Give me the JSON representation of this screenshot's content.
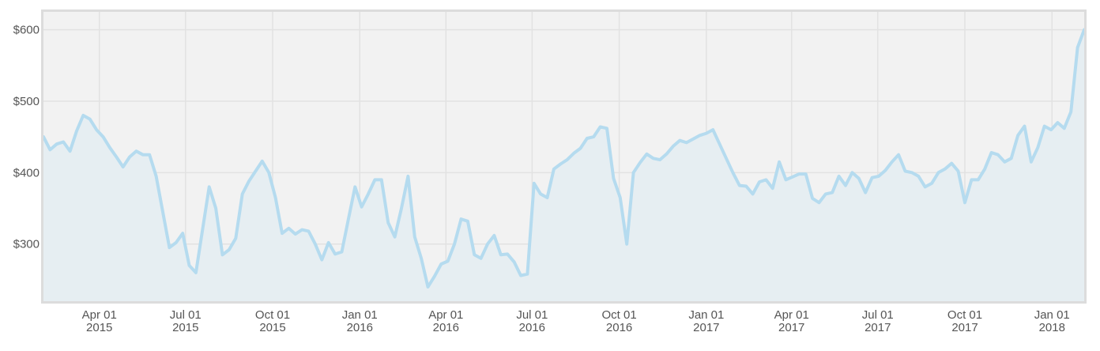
{
  "chart_data": {
    "type": "area",
    "color": "#b5dbef",
    "fill_color": "#e6eef2",
    "background": "#f2f2f2",
    "grid": true,
    "xlim": [
      "2015-02-01",
      "2018-02-04"
    ],
    "ylim": [
      220,
      625
    ],
    "yticks": [
      {
        "value": 300,
        "label": "$300"
      },
      {
        "value": 400,
        "label": "$400"
      },
      {
        "value": 500,
        "label": "$500"
      },
      {
        "value": 600,
        "label": "$600"
      }
    ],
    "xticks": [
      {
        "value": "2015-04-01",
        "label": "Apr 01 2015"
      },
      {
        "value": "2015-07-01",
        "label": "Jul 01 2015"
      },
      {
        "value": "2015-10-01",
        "label": "Oct 01 2015"
      },
      {
        "value": "2016-01-01",
        "label": "Jan 01 2016"
      },
      {
        "value": "2016-04-01",
        "label": "Apr 01 2016"
      },
      {
        "value": "2016-07-01",
        "label": "Jul 01 2016"
      },
      {
        "value": "2016-10-01",
        "label": "Oct 01 2016"
      },
      {
        "value": "2017-01-01",
        "label": "Jan 01 2017"
      },
      {
        "value": "2017-04-01",
        "label": "Apr 01 2017"
      },
      {
        "value": "2017-07-01",
        "label": "Jul 01 2017"
      },
      {
        "value": "2017-10-01",
        "label": "Oct 01 2017"
      },
      {
        "value": "2018-01-01",
        "label": "Jan 01 2018"
      }
    ],
    "x": [
      "2015-02-01",
      "2015-02-08",
      "2015-02-15",
      "2015-02-22",
      "2015-03-01",
      "2015-03-08",
      "2015-03-15",
      "2015-03-22",
      "2015-03-29",
      "2015-04-05",
      "2015-04-12",
      "2015-04-19",
      "2015-04-26",
      "2015-05-03",
      "2015-05-10",
      "2015-05-17",
      "2015-05-24",
      "2015-05-31",
      "2015-06-07",
      "2015-06-14",
      "2015-06-21",
      "2015-06-28",
      "2015-07-05",
      "2015-07-12",
      "2015-07-19",
      "2015-07-26",
      "2015-08-02",
      "2015-08-09",
      "2015-08-16",
      "2015-08-23",
      "2015-08-30",
      "2015-09-06",
      "2015-09-13",
      "2015-09-20",
      "2015-09-27",
      "2015-10-04",
      "2015-10-11",
      "2015-10-18",
      "2015-10-25",
      "2015-11-01",
      "2015-11-08",
      "2015-11-15",
      "2015-11-22",
      "2015-11-29",
      "2015-12-06",
      "2015-12-13",
      "2015-12-20",
      "2015-12-27",
      "2016-01-03",
      "2016-01-10",
      "2016-01-17",
      "2016-01-24",
      "2016-01-31",
      "2016-02-07",
      "2016-02-14",
      "2016-02-21",
      "2016-02-28",
      "2016-03-06",
      "2016-03-13",
      "2016-03-20",
      "2016-03-27",
      "2016-04-03",
      "2016-04-10",
      "2016-04-17",
      "2016-04-24",
      "2016-05-01",
      "2016-05-08",
      "2016-05-15",
      "2016-05-22",
      "2016-05-29",
      "2016-06-05",
      "2016-06-12",
      "2016-06-19",
      "2016-06-26",
      "2016-07-03",
      "2016-07-10",
      "2016-07-17",
      "2016-07-24",
      "2016-07-31",
      "2016-08-07",
      "2016-08-14",
      "2016-08-21",
      "2016-08-28",
      "2016-09-04",
      "2016-09-11",
      "2016-09-18",
      "2016-09-25",
      "2016-10-02",
      "2016-10-09",
      "2016-10-16",
      "2016-10-23",
      "2016-10-30",
      "2016-11-06",
      "2016-11-13",
      "2016-11-20",
      "2016-11-27",
      "2016-12-04",
      "2016-12-11",
      "2016-12-18",
      "2016-12-25",
      "2017-01-01",
      "2017-01-08",
      "2017-01-15",
      "2017-01-22",
      "2017-01-29",
      "2017-02-05",
      "2017-02-12",
      "2017-02-19",
      "2017-02-26",
      "2017-03-05",
      "2017-03-12",
      "2017-03-19",
      "2017-03-26",
      "2017-04-02",
      "2017-04-09",
      "2017-04-16",
      "2017-04-23",
      "2017-04-30",
      "2017-05-07",
      "2017-05-14",
      "2017-05-21",
      "2017-05-28",
      "2017-06-04",
      "2017-06-11",
      "2017-06-18",
      "2017-06-25",
      "2017-07-02",
      "2017-07-09",
      "2017-07-16",
      "2017-07-23",
      "2017-07-30",
      "2017-08-06",
      "2017-08-13",
      "2017-08-20",
      "2017-08-27",
      "2017-09-03",
      "2017-09-10",
      "2017-09-17",
      "2017-09-24",
      "2017-10-01",
      "2017-10-08",
      "2017-10-15",
      "2017-10-22",
      "2017-10-29",
      "2017-11-05",
      "2017-11-12",
      "2017-11-19",
      "2017-11-26",
      "2017-12-03",
      "2017-12-10",
      "2017-12-17",
      "2017-12-24",
      "2017-12-31",
      "2018-01-07",
      "2018-01-14",
      "2018-01-21",
      "2018-01-28",
      "2018-02-04"
    ],
    "values": [
      450,
      432,
      440,
      443,
      430,
      458,
      480,
      475,
      460,
      450,
      435,
      422,
      408,
      422,
      430,
      425,
      425,
      395,
      345,
      295,
      302,
      315,
      270,
      260,
      320,
      380,
      350,
      285,
      292,
      308,
      370,
      388,
      402,
      416,
      400,
      365,
      315,
      322,
      314,
      320,
      318,
      300,
      278,
      302,
      286,
      289,
      335,
      380,
      352,
      370,
      390,
      390,
      330,
      310,
      350,
      395,
      310,
      280,
      240,
      255,
      272,
      276,
      300,
      335,
      332,
      285,
      280,
      300,
      312,
      285,
      286,
      275,
      256,
      258,
      385,
      370,
      365,
      405,
      412,
      418,
      427,
      434,
      448,
      450,
      464,
      462,
      392,
      365,
      300,
      400,
      414,
      426,
      420,
      418,
      426,
      437,
      445,
      442,
      447,
      452,
      455,
      460,
      440,
      420,
      400,
      382,
      381,
      370,
      387,
      390,
      378,
      415,
      390,
      394,
      398,
      398,
      364,
      358,
      370,
      372,
      395,
      382,
      400,
      392,
      372,
      393,
      395,
      403,
      415,
      425,
      402,
      400,
      395,
      380,
      385,
      400,
      405,
      413,
      402,
      358,
      390,
      390,
      405,
      428,
      425,
      415,
      420,
      452,
      465,
      415,
      435,
      465,
      460,
      470,
      462,
      485,
      575,
      600
    ]
  }
}
